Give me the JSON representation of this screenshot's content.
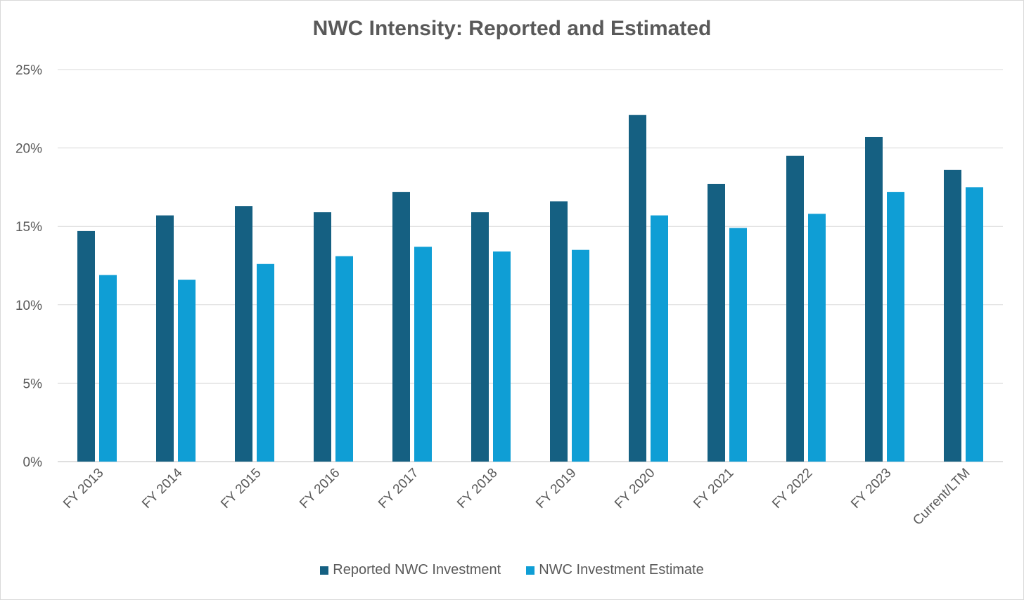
{
  "chart_data": {
    "type": "bar",
    "title": "NWC Intensity: Reported and Estimated",
    "categories": [
      "FY 2013",
      "FY 2014",
      "FY 2015",
      "FY 2016",
      "FY 2017",
      "FY 2018",
      "FY 2019",
      "FY 2020",
      "FY 2021",
      "FY 2022",
      "FY 2023",
      "Current/LTM"
    ],
    "series": [
      {
        "name": "Reported NWC Investment",
        "color": "#156082",
        "values": [
          14.7,
          15.7,
          16.3,
          15.9,
          17.2,
          15.9,
          16.6,
          22.1,
          17.7,
          19.5,
          20.7,
          18.6
        ]
      },
      {
        "name": "NWC Investment Estimate",
        "color": "#0f9ed5",
        "values": [
          11.9,
          11.6,
          12.6,
          13.1,
          13.7,
          13.4,
          13.5,
          15.7,
          14.9,
          15.8,
          17.2,
          17.5
        ]
      }
    ],
    "ylim": [
      0,
      25
    ],
    "y_ticks": [
      "0%",
      "5%",
      "10%",
      "15%",
      "20%",
      "25%"
    ],
    "grid": true,
    "legend_position": "bottom"
  }
}
